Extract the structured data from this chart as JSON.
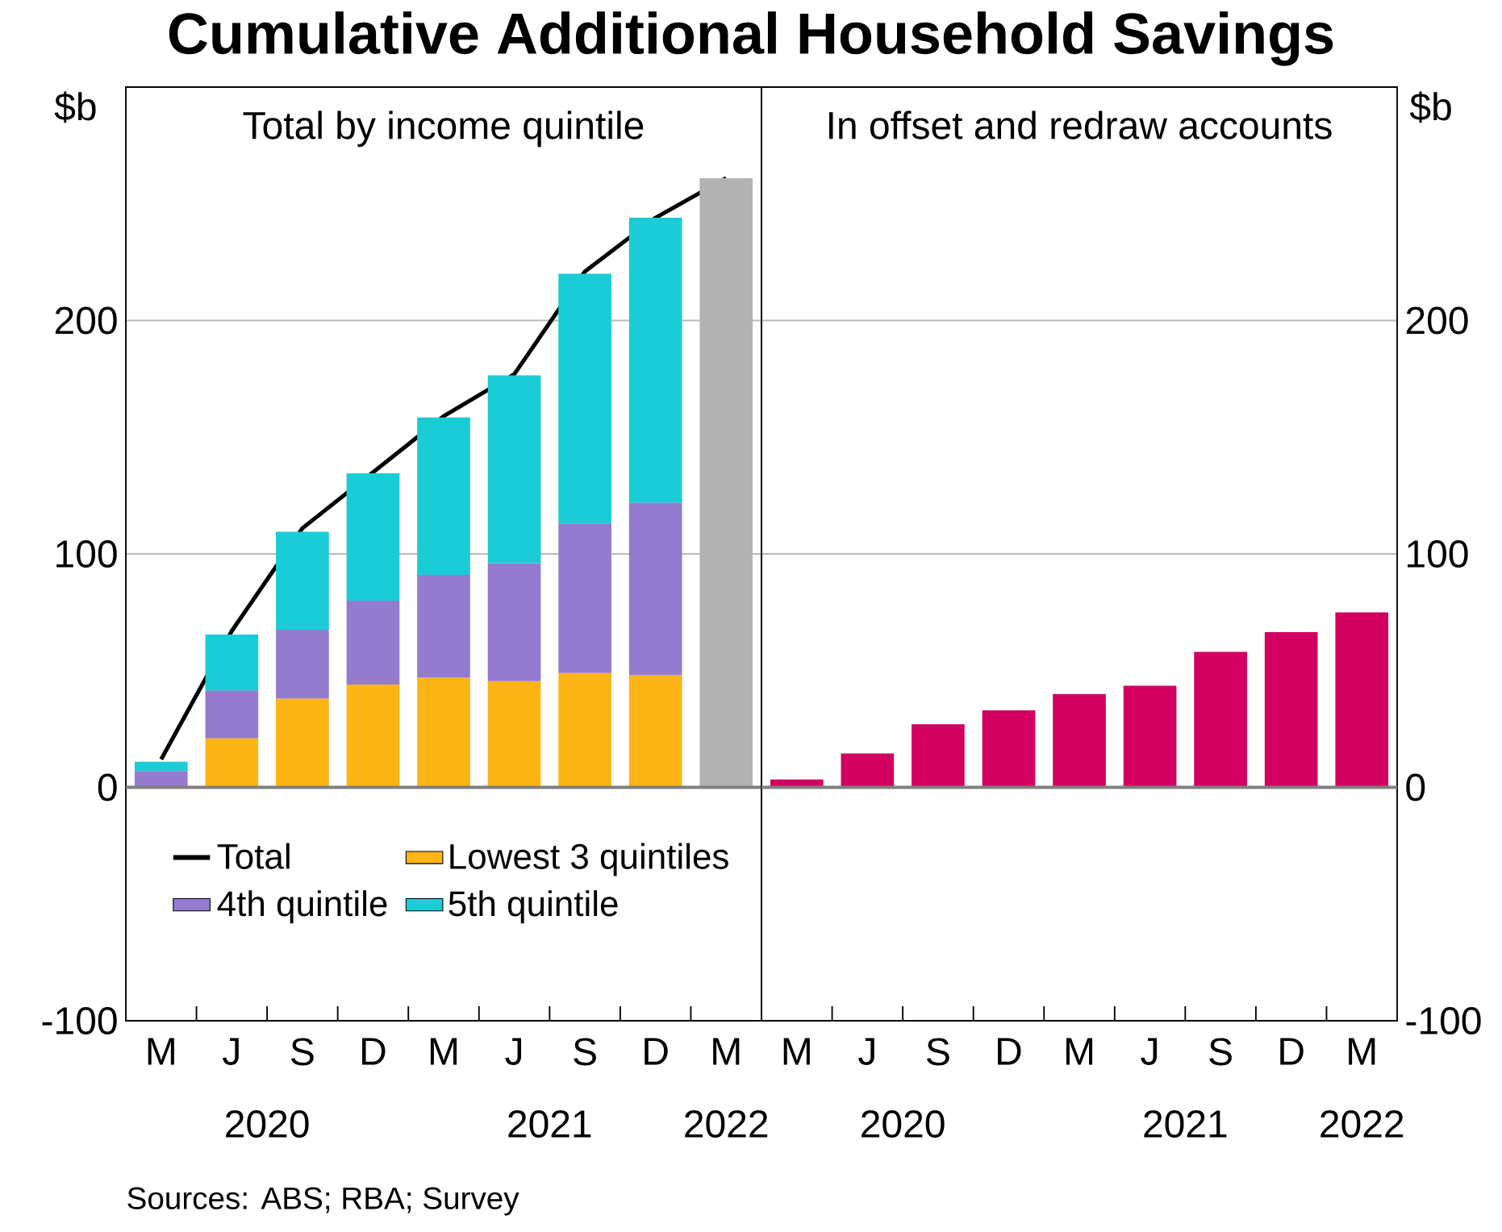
{
  "chart_data": [
    {
      "type": "bar",
      "title": "Cumulative Additional Household Savings",
      "subtitle": "Total by income quintile",
      "ylabel": "$b",
      "categories": [
        "M",
        "J",
        "S",
        "D",
        "M",
        "J",
        "S",
        "D",
        "M"
      ],
      "stacked": true,
      "series": [
        {
          "name": "Total",
          "type": "line",
          "color": "#000000",
          "values": [
            12,
            67,
            111,
            135,
            159,
            177,
            221,
            244,
            261
          ]
        },
        {
          "name": "Lowest 3 quintiles",
          "color": "#FDB415",
          "values": [
            null,
            21,
            38,
            44,
            47,
            45.5,
            49,
            48,
            null
          ]
        },
        {
          "name": "4th quintile",
          "color": "#947BCF",
          "values": [
            7,
            20.5,
            29.5,
            36,
            44,
            50.5,
            64,
            74,
            null
          ]
        },
        {
          "name": "5th quintile",
          "color": "#1ACCD5",
          "values": [
            4,
            24,
            42,
            54.5,
            67.5,
            80.5,
            107,
            122,
            null
          ]
        },
        {
          "color": "#B3B3B3",
          "values": [
            null,
            null,
            null,
            null,
            null,
            null,
            null,
            null,
            261
          ]
        }
      ],
      "ylim": [
        -100,
        300
      ],
      "yticks": [
        -100,
        0,
        100,
        200
      ],
      "grid": "y",
      "legend": "bottom left",
      "ref_lines": [
        {
          "axis": "y",
          "value": 0,
          "color": "#7F7F7F"
        }
      ],
      "annotations": [
        "2020",
        "2021",
        "2022",
        "Sources: ABS; RBA; Survey"
      ]
    },
    {
      "type": "bar",
      "subtitle": "In offset and redraw accounts",
      "ylabel": "$b",
      "categories": [
        "M",
        "J",
        "S",
        "D",
        "M",
        "J",
        "S",
        "D",
        "M"
      ],
      "values": [
        3.4,
        14.5,
        27,
        33,
        40,
        43.5,
        58,
        66.5,
        75
      ],
      "color": "#D20060",
      "ylim": [
        -100,
        300
      ],
      "yticks": [
        -100,
        0,
        100,
        200
      ],
      "grid": "y",
      "ref_lines": [
        {
          "axis": "y",
          "value": 0,
          "color": "#7F7F7F"
        }
      ],
      "annotations": [
        "2020",
        "2021",
        "2022"
      ]
    }
  ]
}
